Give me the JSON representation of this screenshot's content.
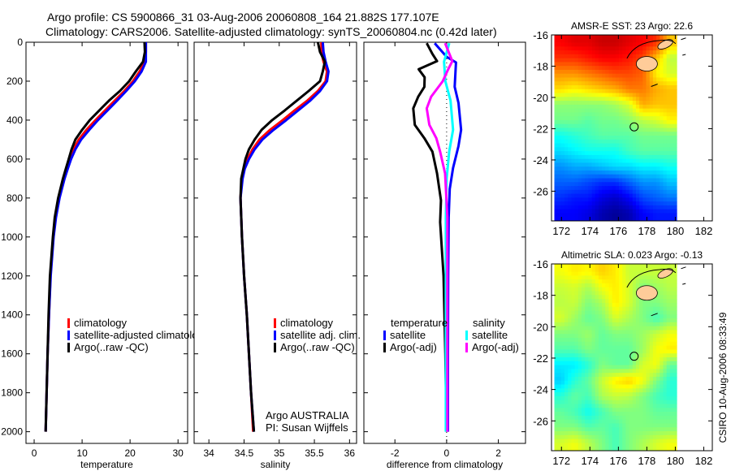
{
  "header": {
    "title_line1": "Argo profile: CS 5900866_31 03-Aug-2006 20060808_164 21.882S 177.107E",
    "title_line2": "Climatology: CARS2006. Satellite-adjusted climatology: synTS_20060804.nc (0.42d later)"
  },
  "footer": {
    "stamp": "CSIRO 10-Aug-2006 08:33:49"
  },
  "chart_data": [
    {
      "type": "line",
      "id": "temperature",
      "xlabel": "temperature",
      "ylabel": "",
      "xlim": [
        -1.7,
        32
      ],
      "ylim": [
        2060,
        0
      ],
      "xticks": [
        0,
        10,
        20,
        30
      ],
      "yticks": [
        0,
        200,
        400,
        600,
        800,
        1000,
        1200,
        1400,
        1600,
        1800,
        2000
      ],
      "depth": [
        0,
        50,
        100,
        150,
        200,
        250,
        300,
        350,
        400,
        450,
        500,
        550,
        600,
        650,
        700,
        800,
        900,
        1000,
        1200,
        1400,
        1600,
        1800,
        2000
      ],
      "legend": [
        "climatology",
        "satellite-adjusted climatology",
        "Argo(..raw -QC)"
      ],
      "series": [
        {
          "name": "climatology",
          "color": "#ff0000",
          "values": [
            23.3,
            23.3,
            23.0,
            22.0,
            20.6,
            18.8,
            16.8,
            14.8,
            12.8,
            10.9,
            9.3,
            8.2,
            7.4,
            6.8,
            6.2,
            5.2,
            4.5,
            4.0,
            3.4,
            3.1,
            2.8,
            2.6,
            2.4
          ]
        },
        {
          "name": "satellite-adjusted climatology",
          "color": "#0000ff",
          "values": [
            23.3,
            23.3,
            23.3,
            22.4,
            21.0,
            19.2,
            17.3,
            15.3,
            13.3,
            11.5,
            9.8,
            8.6,
            7.7,
            7.0,
            6.35,
            5.3,
            4.55,
            4.05,
            3.45,
            3.1,
            2.8,
            2.6,
            2.4
          ]
        },
        {
          "name": "Argo(..raw -QC)",
          "color": "#000000",
          "values": [
            23.0,
            23.1,
            22.7,
            21.2,
            19.8,
            17.9,
            15.6,
            13.6,
            11.6,
            10.0,
            8.6,
            7.8,
            7.2,
            6.6,
            6.0,
            5.0,
            4.3,
            3.9,
            3.3,
            3.0,
            2.8,
            2.6,
            2.4
          ]
        }
      ]
    },
    {
      "type": "line",
      "id": "salinity",
      "xlabel": "salinity",
      "xlim": [
        33.79,
        36.1
      ],
      "ylim": [
        2060,
        0
      ],
      "xticks": [
        34,
        34.5,
        35,
        35.5,
        36
      ],
      "depth": [
        0,
        50,
        100,
        150,
        200,
        250,
        300,
        350,
        400,
        450,
        500,
        550,
        600,
        650,
        700,
        800,
        900,
        1000,
        1200,
        1400,
        1600,
        1800,
        2000
      ],
      "legend": [
        "climatology",
        "satellite adj. clim.",
        "Argo(..raw -QC)"
      ],
      "annotation": [
        "Argo AUSTRALIA",
        "PI: Susan Wijffels"
      ],
      "series": [
        {
          "name": "climatology",
          "color": "#ff0000",
          "values": [
            35.6,
            35.6,
            35.63,
            35.68,
            35.66,
            35.55,
            35.4,
            35.22,
            35.05,
            34.87,
            34.72,
            34.62,
            34.55,
            34.5,
            34.47,
            34.45,
            34.46,
            34.47,
            34.5,
            34.54,
            34.57,
            34.6,
            34.63
          ]
        },
        {
          "name": "satellite adj. clim.",
          "color": "#0000ff",
          "values": [
            35.62,
            35.63,
            35.66,
            35.7,
            35.68,
            35.58,
            35.44,
            35.27,
            35.1,
            34.92,
            34.76,
            34.65,
            34.57,
            34.51,
            34.48,
            34.45,
            34.46,
            34.47,
            34.5,
            34.54,
            34.57,
            34.6,
            34.64
          ]
        },
        {
          "name": "Argo(..raw -QC)",
          "color": "#000000",
          "values": [
            35.55,
            35.58,
            35.65,
            35.62,
            35.58,
            35.42,
            35.25,
            35.08,
            34.9,
            34.75,
            34.65,
            34.57,
            34.52,
            34.49,
            34.46,
            34.45,
            34.46,
            34.47,
            34.5,
            34.54,
            34.57,
            34.6,
            34.64
          ]
        }
      ]
    },
    {
      "type": "line",
      "id": "difference",
      "xlabel": "difference from climatology",
      "xlim": [
        -3.2,
        3.05
      ],
      "ylim": [
        2060,
        0
      ],
      "xticks": [
        -2,
        0,
        2
      ],
      "zero_line": "dotted",
      "legend_temperature": {
        "heading": "temperature",
        "items": [
          "satellite",
          "Argo(-adj)"
        ]
      },
      "legend_salinity": {
        "heading": "salinity",
        "items": [
          "satellite",
          "Argo(-adj)"
        ]
      },
      "series": [
        {
          "name": "temperature satellite",
          "color": "#0000ff",
          "depth": [
            5,
            75,
            104,
            229,
            312,
            450,
            533,
            646,
            754,
            900,
            1200,
            1600,
            2000
          ],
          "values": [
            -0.46,
            0,
            0.36,
            0.31,
            0.46,
            0.56,
            0.46,
            0.25,
            0.12,
            0.08,
            0.06,
            0.05,
            0.05
          ]
        },
        {
          "name": "temperature Argo(-adj)",
          "color": "#000000",
          "depth": [
            5,
            60,
            97,
            139,
            180,
            229,
            280,
            340,
            424,
            493,
            562,
            674,
            812,
            924,
            1200,
            1600,
            2000
          ],
          "values": [
            -0.77,
            -0.55,
            -0.37,
            -1.08,
            -0.85,
            -0.86,
            -1.1,
            -1.29,
            -1.23,
            -0.86,
            -0.55,
            -0.37,
            -0.22,
            -0.25,
            -0.12,
            -0.05,
            0
          ]
        },
        {
          "name": "salinity satellite",
          "color": "#00ffff",
          "depth": [
            5,
            100,
            200,
            300,
            450,
            560,
            700,
            900,
            1200,
            1600,
            2000
          ],
          "values": [
            0.1,
            -0.1,
            -0.05,
            0.15,
            0.25,
            0.1,
            0,
            -0.03,
            -0.03,
            -0.03,
            -0.03
          ]
        },
        {
          "name": "salinity Argo(-adj)",
          "color": "#ff00ff",
          "depth": [
            5,
            97,
            139,
            200,
            280,
            340,
            424,
            493,
            562,
            674,
            900,
            1200,
            1600,
            2000
          ],
          "values": [
            -0.06,
            0.22,
            0.06,
            -0.15,
            -0.6,
            -0.77,
            -0.67,
            -0.4,
            -0.25,
            -0.06,
            0.03,
            0.03,
            0.03,
            0.03
          ]
        }
      ]
    },
    {
      "type": "heatmap",
      "id": "sst-map",
      "title": "AMSR-E SST: 23 Argo: 22.6",
      "xlim": [
        171.3,
        182.6
      ],
      "ylim": [
        -27.9,
        -16
      ],
      "xticks": [
        172,
        174,
        176,
        178,
        180,
        182
      ],
      "yticks": [
        -16,
        -18,
        -20,
        -22,
        -24,
        -26
      ],
      "data_lon_range": [
        171.5,
        180.1
      ],
      "color_range": [
        21.2,
        25.3
      ],
      "argo_position": [
        177.107,
        -21.882
      ],
      "grid": [
        [
          24.8,
          24.9,
          24.9,
          25.0,
          25.0,
          24.9,
          24.8,
          24.6,
          24.0
        ],
        [
          24.6,
          24.6,
          24.7,
          24.8,
          24.8,
          24.7,
          24.5,
          24.0,
          23.5
        ],
        [
          24.2,
          24.2,
          24.3,
          24.4,
          24.5,
          24.5,
          24.4,
          23.8,
          23.6
        ],
        [
          23.9,
          23.8,
          23.9,
          24.0,
          24.1,
          24.3,
          24.3,
          24.1,
          24.0
        ],
        [
          23.3,
          23.3,
          23.3,
          23.3,
          23.4,
          23.6,
          24.1,
          24.0,
          24.0
        ],
        [
          23.2,
          23.2,
          23.1,
          23.2,
          23.2,
          23.3,
          23.5,
          23.6,
          23.8
        ],
        [
          22.8,
          22.9,
          23.0,
          23.1,
          23.1,
          23.1,
          23.2,
          23.2,
          23.2
        ],
        [
          22.6,
          22.7,
          22.8,
          22.8,
          22.8,
          23.0,
          23.1,
          23.1,
          23.1
        ],
        [
          22.3,
          22.4,
          22.4,
          22.5,
          22.6,
          22.6,
          22.7,
          22.7,
          22.8
        ],
        [
          22.1,
          22.1,
          22.0,
          21.9,
          21.9,
          22.1,
          22.3,
          22.3,
          22.5
        ],
        [
          21.9,
          21.8,
          21.8,
          21.6,
          21.5,
          21.7,
          22.0,
          22.1,
          22.2
        ],
        [
          21.7,
          21.7,
          21.6,
          21.4,
          21.3,
          21.4,
          21.7,
          21.8,
          21.8
        ]
      ]
    },
    {
      "type": "heatmap",
      "id": "sla-map",
      "title": "Altimetric SLA: 0.023 Argo: -0.13",
      "xlim": [
        171.3,
        182.6
      ],
      "ylim": [
        -27.9,
        -16
      ],
      "xticks": [
        172,
        174,
        176,
        178,
        180,
        182
      ],
      "yticks": [
        -16,
        -18,
        -20,
        -22,
        -24,
        -26
      ],
      "data_lon_range": [
        171.5,
        180.1
      ],
      "color_range": [
        -0.35,
        0.35
      ],
      "argo_position": [
        177.107,
        -21.882
      ],
      "grid": [
        [
          0.08,
          0.1,
          0.09,
          0.12,
          0.1,
          0.05,
          0.05,
          0.05,
          0.05
        ],
        [
          0.05,
          0.06,
          0.03,
          0.08,
          0.1,
          0.06,
          0.0,
          0.02,
          0.04
        ],
        [
          0.04,
          0.05,
          0.0,
          0.03,
          0.1,
          0.06,
          0.0,
          0.0,
          0.02
        ],
        [
          0.06,
          0.02,
          -0.02,
          0.0,
          0.06,
          0.03,
          0.0,
          -0.04,
          0.0
        ],
        [
          0.0,
          0.0,
          0.02,
          -0.02,
          0.0,
          0.0,
          0.02,
          0.05,
          0.08
        ],
        [
          -0.03,
          -0.03,
          0.0,
          -0.02,
          -0.02,
          -0.02,
          0.02,
          0.08,
          0.1
        ],
        [
          -0.1,
          -0.1,
          -0.06,
          0.0,
          -0.02,
          -0.02,
          0.06,
          0.08,
          -0.02
        ],
        [
          -0.12,
          -0.06,
          -0.02,
          0.05,
          0.1,
          0.12,
          0.08,
          0.0,
          -0.06
        ],
        [
          -0.06,
          -0.02,
          -0.04,
          0.03,
          0.05,
          0.04,
          0.0,
          -0.04,
          -0.06
        ],
        [
          -0.02,
          -0.04,
          -0.08,
          -0.04,
          0.0,
          0.0,
          0.0,
          -0.02,
          -0.02
        ],
        [
          0.0,
          0.0,
          -0.03,
          -0.02,
          -0.04,
          0.0,
          0.0,
          0.0,
          0.0
        ],
        [
          0.06,
          0.08,
          0.04,
          0.0,
          -0.04,
          0.0,
          0.03,
          0.06,
          0.08
        ]
      ]
    }
  ]
}
